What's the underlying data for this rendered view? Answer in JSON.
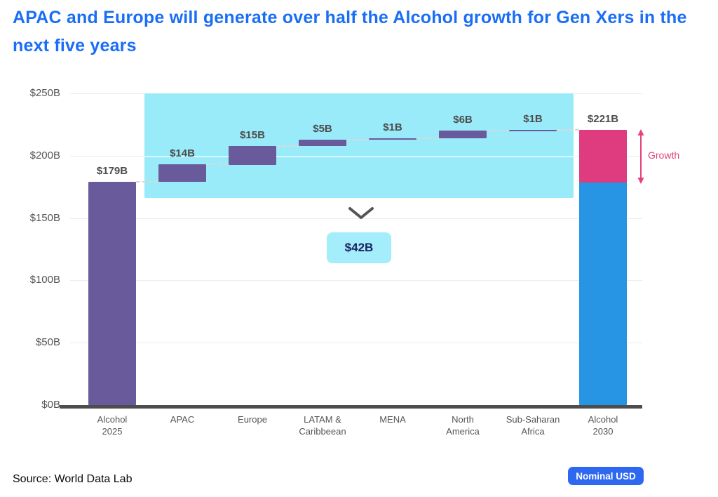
{
  "title": "APAC and Europe will generate over half the Alcohol growth for Gen Xers in the next five years",
  "source": "Source: World Data Lab",
  "badge_label": "Nominal USD",
  "colors": {
    "title_blue": "#1a6ef5",
    "purple_bar": "#695a9c",
    "cyan_highlight": "#99ebfa",
    "callout_bg": "#a4edfb",
    "callout_text": "#1b2161",
    "pink": "#df3c80",
    "blue_bar": "#2794e4",
    "axis_text": "#555555",
    "label_text": "#4d4d4d",
    "badge_bg": "#2e68f1",
    "grid": "#ececec",
    "axis_line": "#4d4d4d",
    "chevron": "#555555",
    "growth_pink": "#e5407e"
  },
  "chart_data": {
    "type": "bar",
    "subtype": "waterfall",
    "categories": [
      "Alcohol 2025",
      "APAC",
      "Europe",
      "LATAM & Caribbeean",
      "MENA",
      "North America",
      "Sub-Saharan Africa",
      "Alcohol 2030"
    ],
    "category_lines": [
      [
        "Alcohol",
        "2025"
      ],
      [
        "APAC"
      ],
      [
        "Europe"
      ],
      [
        "LATAM &",
        "Caribbeean"
      ],
      [
        "MENA"
      ],
      [
        "North",
        "America"
      ],
      [
        "Sub-Saharan",
        "Africa"
      ],
      [
        "Alcohol",
        "2030"
      ]
    ],
    "kinds": [
      "total",
      "delta",
      "delta",
      "delta",
      "delta",
      "delta",
      "delta",
      "final"
    ],
    "values": [
      179,
      14,
      15,
      5,
      1,
      6,
      1,
      221
    ],
    "data_labels": [
      "$179B",
      "$14B",
      "$15B",
      "$5B",
      "$1B",
      "$6B",
      "$1B",
      "$221B"
    ],
    "cumulative_levels": [
      179,
      193,
      208,
      213,
      214,
      220,
      221
    ],
    "final_bar_split": {
      "base_value": 179,
      "total_value": 221,
      "base_color_name": "blue_bar",
      "growth_color_name": "pink"
    },
    "y_ticks": [
      {
        "label": "$0B",
        "value": 0
      },
      {
        "label": "$50B",
        "value": 50
      },
      {
        "label": "$100B",
        "value": 100
      },
      {
        "label": "$150B",
        "value": 150
      },
      {
        "label": "$200B",
        "value": 200
      },
      {
        "label": "$250B",
        "value": 250
      }
    ],
    "ylim": [
      0,
      250
    ],
    "grid": true,
    "highlight_region": {
      "categories_covered": [
        "APAC",
        "Europe",
        "LATAM & Caribbeean",
        "MENA",
        "North America",
        "Sub-Saharan Africa"
      ],
      "callout_label": "$42B"
    },
    "growth_annotation": "Growth"
  }
}
